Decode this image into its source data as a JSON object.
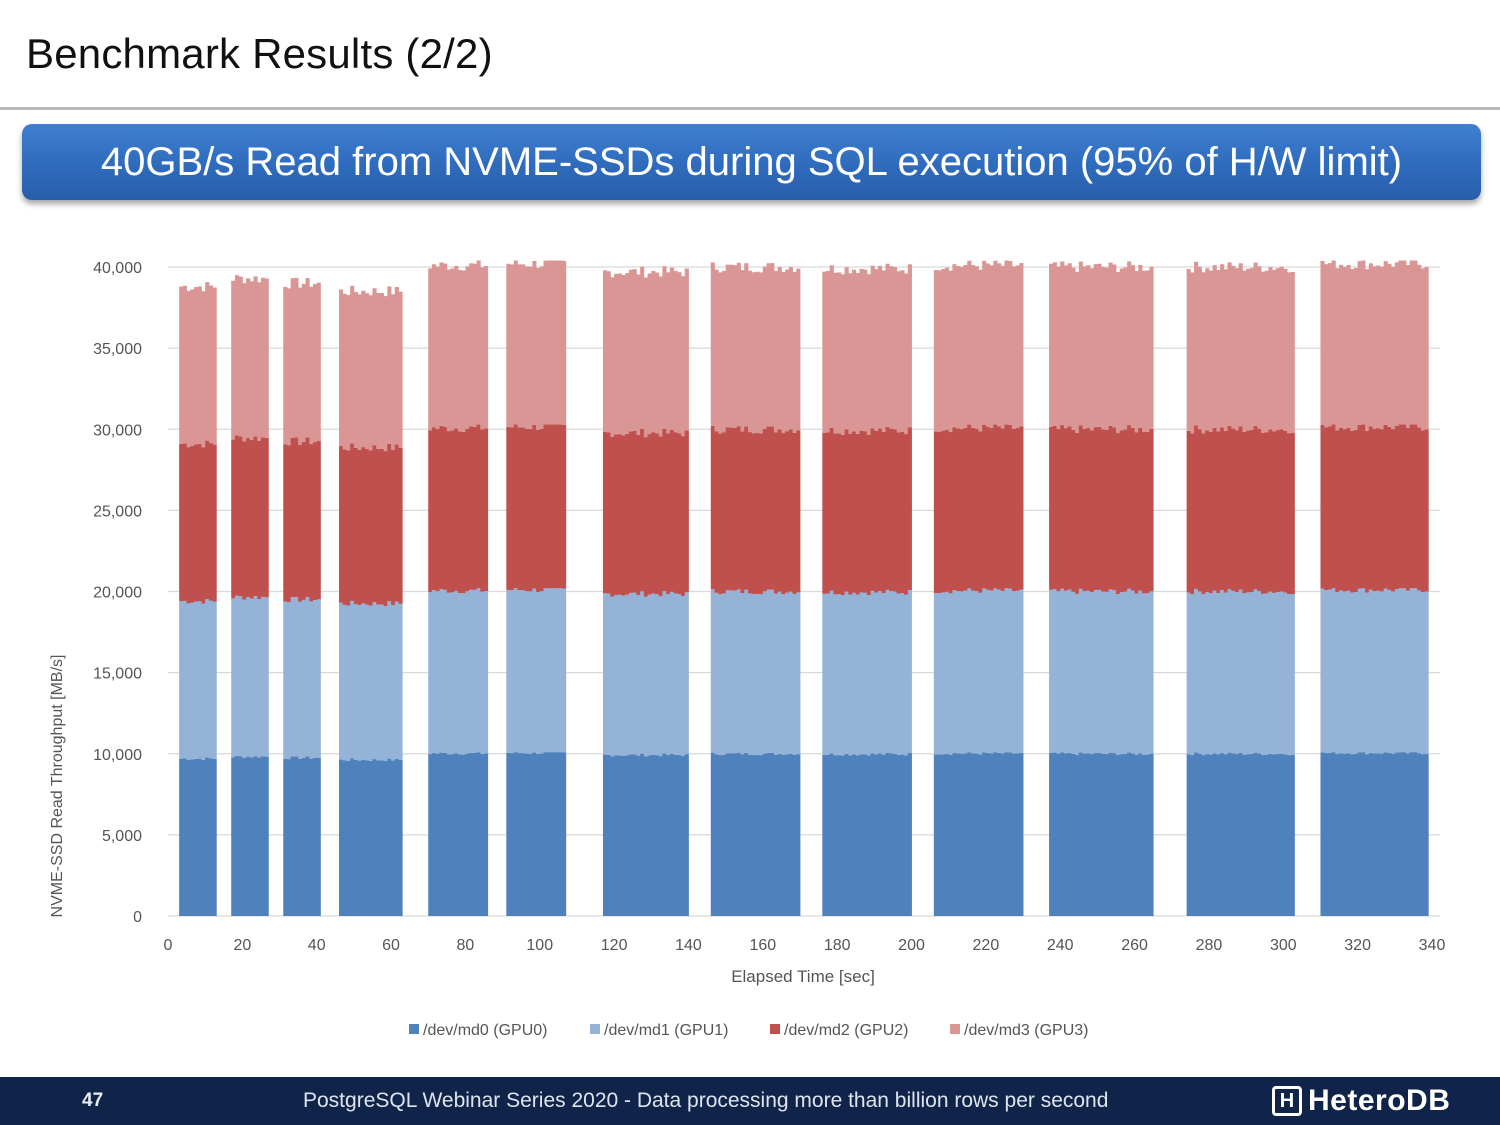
{
  "slide": {
    "title": "Benchmark Results (2/2)",
    "banner": "40GB/s Read from NVME-SSDs during SQL execution (95% of H/W limit)"
  },
  "footer": {
    "page": "47",
    "text": "PostgreSQL Webinar Series 2020 - Data processing more than billion rows per second",
    "logo": "HeteroDB",
    "logo_mark": "H"
  },
  "colors": {
    "md0": "#4f81bd",
    "md1": "#95b3d7",
    "md2": "#c0504d",
    "md3": "#d99694",
    "banner": "#2f6bbd",
    "footer": "#10244a"
  },
  "chart_data": {
    "type": "bar",
    "stacked": true,
    "xlabel": "Elapsed Time [sec]",
    "ylabel": "NVME-SSD Read Throughput [MB/s]",
    "xlim": [
      0,
      340
    ],
    "ylim": [
      0,
      40000
    ],
    "xticks": [
      "0",
      "20",
      "40",
      "60",
      "80",
      "100",
      "120",
      "140",
      "160",
      "180",
      "200",
      "220",
      "240",
      "260",
      "280",
      "300",
      "320",
      "340"
    ],
    "yticks": [
      "0",
      "5,000",
      "10,000",
      "15,000",
      "20,000",
      "25,000",
      "30,000",
      "35,000",
      "40,000"
    ],
    "grid": true,
    "legend_position": "bottom",
    "series": [
      {
        "name": "/dev/md0 (GPU0)",
        "color": "#4f81bd"
      },
      {
        "name": "/dev/md1 (GPU1)",
        "color": "#95b3d7"
      },
      {
        "name": "/dev/md2 (GPU2)",
        "color": "#c0504d"
      },
      {
        "name": "/dev/md3 (GPU3)",
        "color": "#d99694"
      }
    ],
    "bursts": [
      {
        "start": 3,
        "end": 13,
        "total": 38800
      },
      {
        "start": 17,
        "end": 27,
        "total": 39300
      },
      {
        "start": 31,
        "end": 41,
        "total": 39000
      },
      {
        "start": 46,
        "end": 63,
        "total": 38500
      },
      {
        "start": 70,
        "end": 86,
        "total": 40100
      },
      {
        "start": 91,
        "end": 107,
        "total": 40200
      },
      {
        "start": 117,
        "end": 140,
        "total": 39700
      },
      {
        "start": 146,
        "end": 170,
        "total": 40000
      },
      {
        "start": 176,
        "end": 200,
        "total": 39900
      },
      {
        "start": 206,
        "end": 230,
        "total": 40100
      },
      {
        "start": 237,
        "end": 265,
        "total": 40000
      },
      {
        "start": 274,
        "end": 303,
        "total": 40000
      },
      {
        "start": 310,
        "end": 339,
        "total": 40200
      }
    ],
    "note_shares": [
      0.25,
      0.25,
      0.25,
      0.25
    ]
  }
}
